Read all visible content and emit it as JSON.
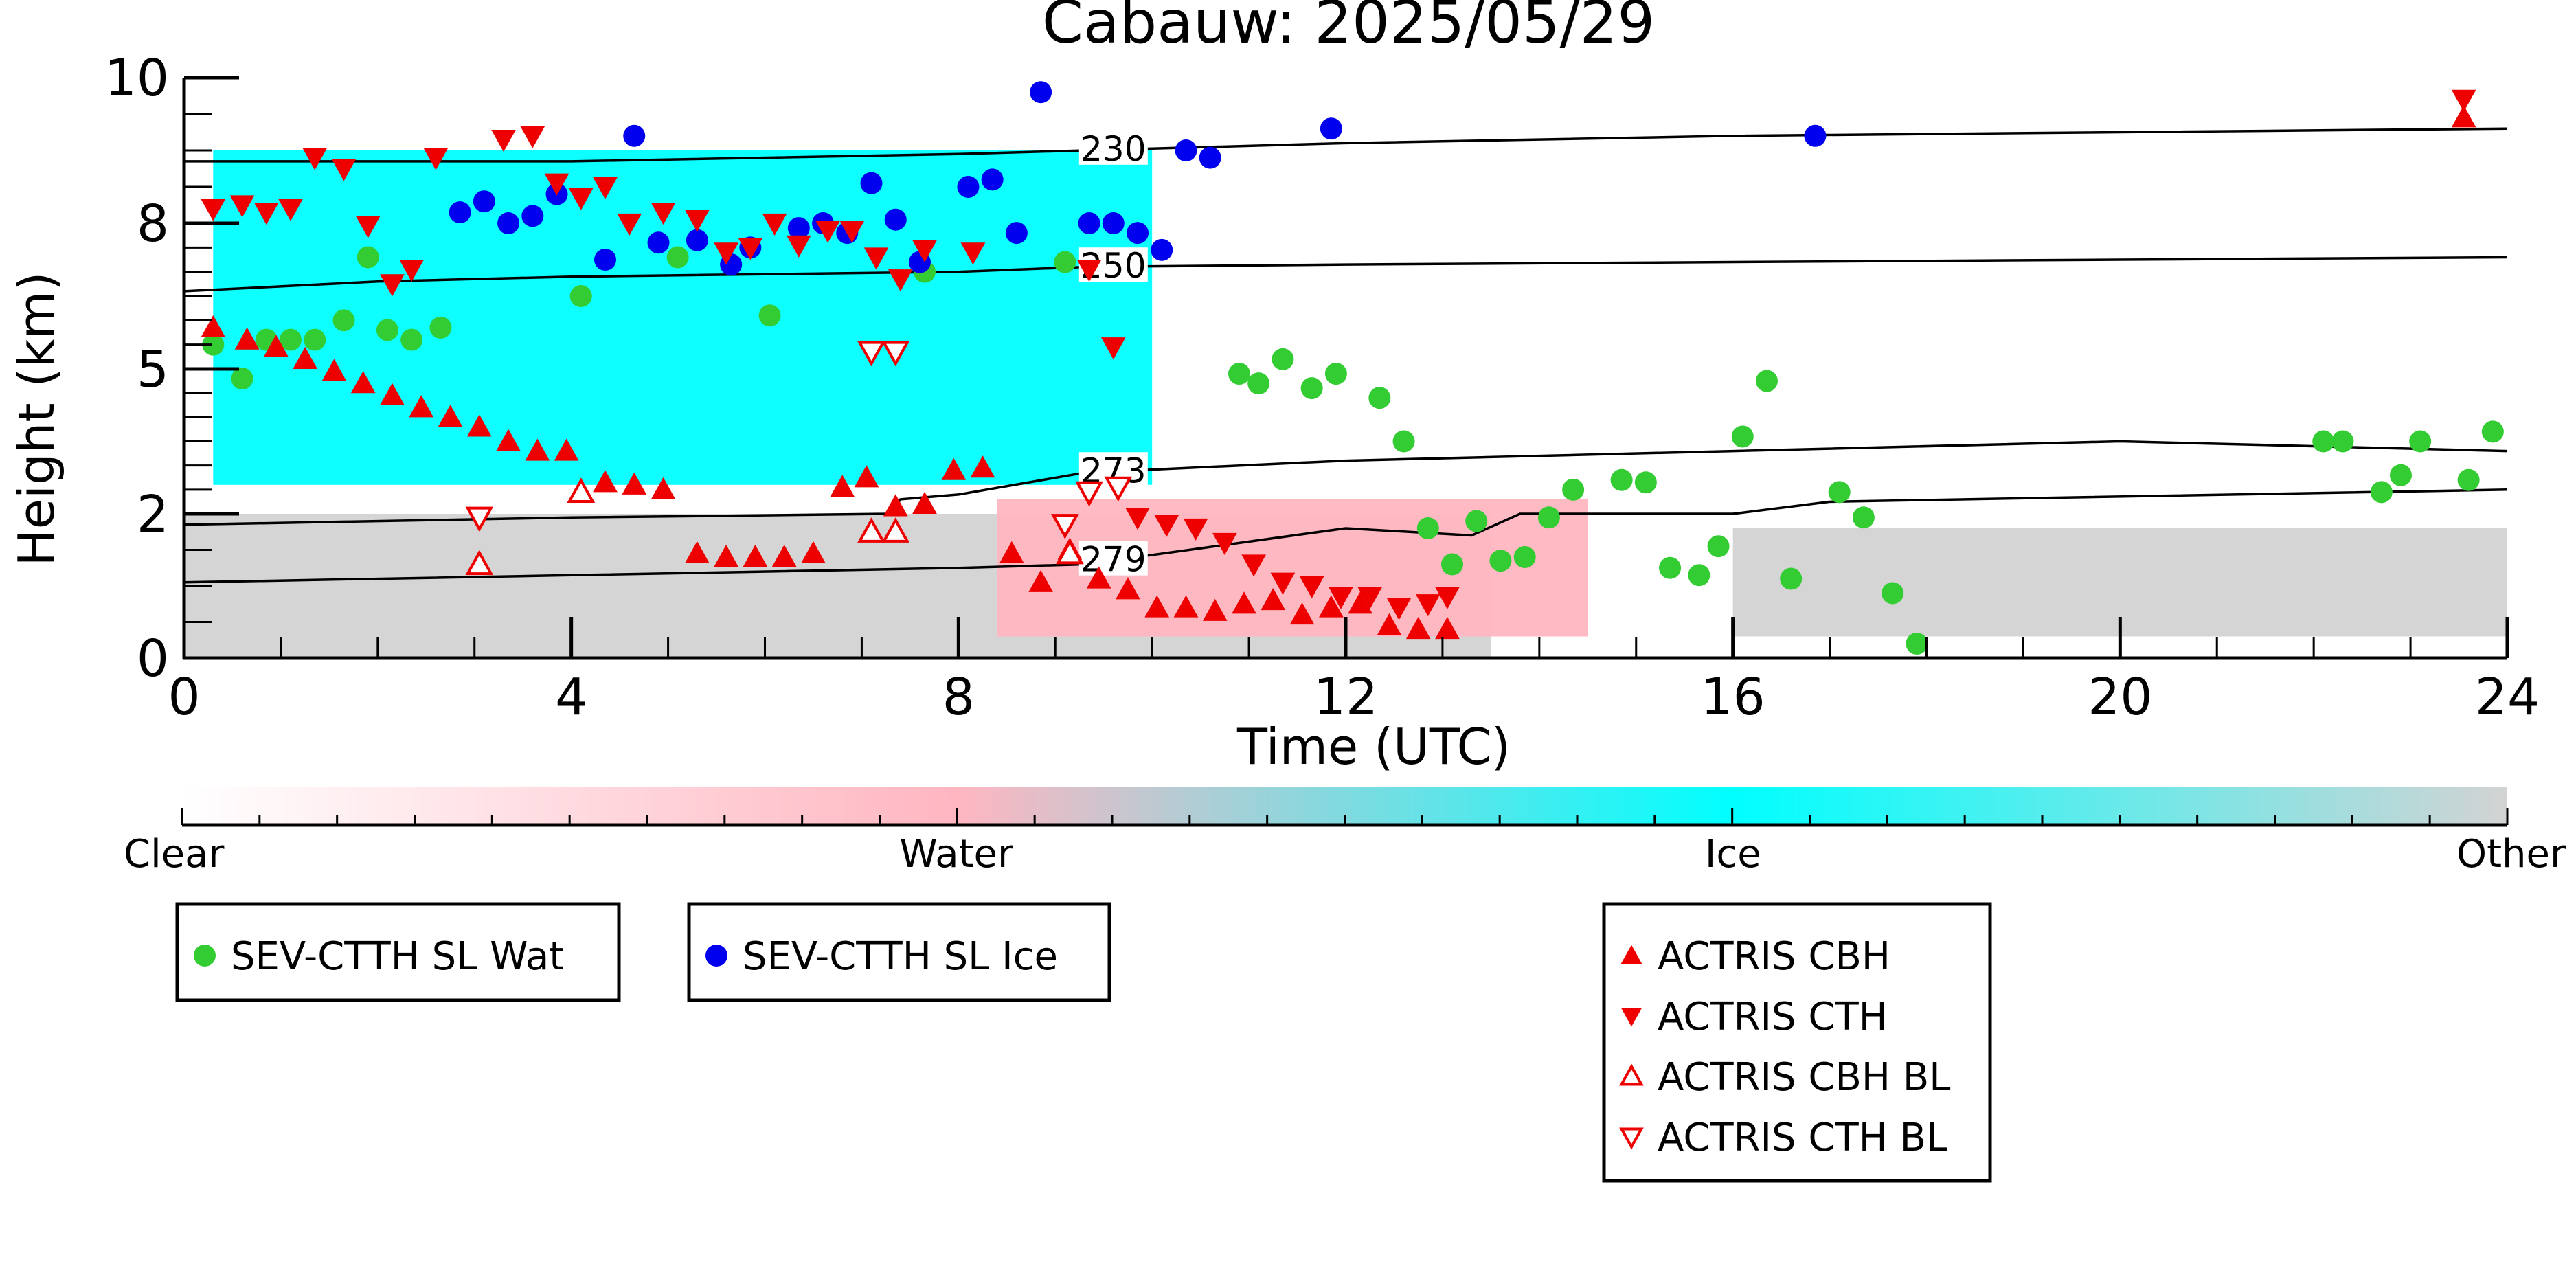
{
  "chart_data": {
    "type": "scatter",
    "title": "Cabauw: 2025/05/29",
    "xlabel": "Time (UTC)",
    "ylabel": "Height (km)",
    "xlim": [
      0,
      24
    ],
    "ylim": [
      0,
      10
    ],
    "y_axis_note": "nonlinear height axis; tick labels 0, 2, 5, 8, 10",
    "x_ticks": [
      0,
      4,
      8,
      12,
      16,
      20,
      24
    ],
    "y_ticks": [
      0,
      2,
      5,
      8,
      10
    ],
    "colorbar": {
      "labels": [
        "Clear",
        "Water",
        "Ice",
        "Other"
      ],
      "colors": [
        "#ffffff",
        "#ffb6c1",
        "#00ffff",
        "#d3d3d3"
      ]
    },
    "background_regions": [
      {
        "category": "Ice",
        "color": "#00ffff",
        "x": [
          0.3,
          10.0
        ],
        "y": [
          2.6,
          9.0
        ]
      },
      {
        "category": "Other",
        "color": "#d3d3d3",
        "x": [
          0.0,
          13.5
        ],
        "y": [
          0.0,
          2.0
        ]
      },
      {
        "category": "Other",
        "color": "#d3d3d3",
        "x": [
          16.0,
          24.0
        ],
        "y": [
          0.3,
          1.8
        ]
      },
      {
        "category": "Water",
        "color": "#ffb6c1",
        "x": [
          8.4,
          14.5
        ],
        "y": [
          0.3,
          2.3
        ]
      }
    ],
    "isotherms": [
      {
        "label": "230",
        "x": [
          0,
          4,
          8,
          9.3,
          12,
          16,
          20,
          24
        ],
        "y": [
          8.85,
          8.85,
          8.95,
          9.0,
          9.1,
          9.2,
          9.25,
          9.3
        ]
      },
      {
        "label": "250",
        "x": [
          0,
          2,
          4,
          8,
          9.3,
          12,
          16,
          20,
          24
        ],
        "y": [
          6.6,
          6.8,
          6.9,
          7.0,
          7.1,
          7.15,
          7.2,
          7.25,
          7.3
        ]
      },
      {
        "label": "273",
        "x": [
          0,
          4,
          7.3,
          7.4,
          8,
          9.3,
          12,
          16,
          20,
          24
        ],
        "y": [
          1.85,
          1.95,
          2.0,
          2.3,
          2.4,
          2.85,
          3.1,
          3.3,
          3.5,
          3.3
        ]
      },
      {
        "label": "279",
        "x": [
          0,
          4,
          8,
          9.3,
          12,
          13.3,
          13.8,
          16,
          17,
          24
        ],
        "y": [
          1.05,
          1.15,
          1.25,
          1.3,
          1.8,
          1.7,
          2.0,
          2.0,
          2.25,
          2.5
        ]
      }
    ],
    "series": [
      {
        "name": "SEV-CTTH SL Wat",
        "marker": "circle",
        "color": "#33cc33",
        "x": [
          0.3,
          0.6,
          0.85,
          1.1,
          1.35,
          1.65,
          1.9,
          2.1,
          2.35,
          2.65,
          4.1,
          5.1,
          6.05,
          7.65,
          9.1,
          10.9,
          11.1,
          11.35,
          11.65,
          11.9,
          12.35,
          12.6,
          12.85,
          13.1,
          13.35,
          13.6,
          13.85,
          14.1,
          14.35,
          14.85,
          15.1,
          15.35,
          15.65,
          15.85,
          16.1,
          16.35,
          16.6,
          17.1,
          17.35,
          17.65,
          17.9,
          22.1,
          22.3,
          22.7,
          22.9,
          23.1,
          23.6,
          23.85
        ],
        "y": [
          5.5,
          4.8,
          5.6,
          5.6,
          5.6,
          6.0,
          7.3,
          5.8,
          5.6,
          5.85,
          6.5,
          7.3,
          6.1,
          7.0,
          7.2,
          4.9,
          4.7,
          5.2,
          4.6,
          4.9,
          4.4,
          3.5,
          1.8,
          1.3,
          1.9,
          1.35,
          1.4,
          1.95,
          2.5,
          2.7,
          2.65,
          1.25,
          1.15,
          1.55,
          3.6,
          4.75,
          1.1,
          2.45,
          1.95,
          0.9,
          0.2,
          3.5,
          3.5,
          2.45,
          2.8,
          3.5,
          2.7,
          3.7
        ]
      },
      {
        "name": "SEV-CTTH SL Ice",
        "marker": "circle",
        "color": "#0000ee",
        "x": [
          2.85,
          3.1,
          3.35,
          3.6,
          3.85,
          4.35,
          4.65,
          4.9,
          5.3,
          5.65,
          5.85,
          6.35,
          6.6,
          6.85,
          7.1,
          7.35,
          7.6,
          8.1,
          8.35,
          8.6,
          8.85,
          9.35,
          9.6,
          9.85,
          10.1,
          10.35,
          10.6,
          11.85,
          16.85
        ],
        "y": [
          8.15,
          8.3,
          8.0,
          8.1,
          8.4,
          7.25,
          9.2,
          7.6,
          7.65,
          7.15,
          7.5,
          7.9,
          8.0,
          7.8,
          8.55,
          8.05,
          7.2,
          8.5,
          8.6,
          7.8,
          9.8,
          8.0,
          8.0,
          7.8,
          7.45,
          9.0,
          8.9,
          9.3,
          9.2
        ]
      },
      {
        "name": "ACTRIS CBH",
        "marker": "triangle-up",
        "color": "#ee0000",
        "x": [
          0.3,
          0.65,
          0.95,
          1.25,
          1.55,
          1.85,
          2.15,
          2.45,
          2.75,
          3.05,
          3.35,
          3.65,
          3.95,
          4.35,
          4.65,
          4.95,
          5.3,
          5.6,
          5.9,
          6.2,
          6.5,
          6.8,
          7.05,
          7.35,
          7.65,
          7.95,
          8.25,
          8.55,
          8.85,
          9.15,
          9.45,
          9.75,
          10.05,
          10.35,
          10.65,
          10.95,
          11.25,
          11.55,
          11.85,
          12.15,
          12.45,
          12.75,
          13.05,
          23.55
        ],
        "y": [
          5.85,
          5.6,
          5.45,
          5.2,
          4.95,
          4.7,
          4.45,
          4.2,
          4.0,
          3.8,
          3.5,
          3.3,
          3.3,
          2.65,
          2.6,
          2.5,
          1.45,
          1.4,
          1.4,
          1.4,
          1.45,
          2.55,
          2.75,
          2.15,
          2.2,
          2.9,
          2.95,
          1.45,
          1.05,
          1.5,
          1.1,
          0.95,
          0.7,
          0.7,
          0.65,
          0.75,
          0.8,
          0.6,
          0.7,
          0.75,
          0.45,
          0.4,
          0.4,
          9.45
        ]
      },
      {
        "name": "ACTRIS CTH",
        "marker": "triangle-down",
        "color": "#ee0000",
        "x": [
          0.3,
          0.6,
          0.85,
          1.1,
          1.35,
          1.65,
          1.9,
          2.15,
          2.35,
          2.6,
          3.3,
          3.6,
          3.85,
          4.1,
          4.35,
          4.6,
          4.95,
          5.3,
          5.6,
          5.85,
          6.1,
          6.35,
          6.65,
          6.9,
          7.15,
          7.4,
          7.65,
          8.15,
          9.35,
          9.6,
          9.85,
          10.15,
          10.45,
          10.75,
          11.05,
          11.35,
          11.65,
          11.95,
          12.25,
          12.55,
          12.85,
          13.05,
          23.55
        ],
        "y": [
          8.2,
          8.25,
          8.15,
          8.2,
          8.9,
          8.75,
          7.95,
          6.75,
          7.05,
          8.9,
          9.15,
          9.2,
          8.55,
          8.35,
          8.5,
          8.0,
          8.15,
          8.05,
          7.4,
          7.5,
          8.0,
          7.55,
          7.85,
          7.85,
          7.3,
          6.85,
          7.45,
          7.4,
          7.05,
          5.45,
          1.95,
          1.85,
          1.8,
          1.6,
          1.3,
          1.05,
          1.0,
          0.85,
          0.85,
          0.7,
          0.75,
          0.85,
          9.7
        ]
      },
      {
        "name": "ACTRIS CBH BL",
        "marker": "triangle-up-open",
        "color": "#ee0000",
        "x": [
          3.05,
          4.1,
          7.1,
          7.35,
          9.15
        ],
        "y": [
          1.3,
          2.45,
          1.75,
          1.75,
          1.45
        ]
      },
      {
        "name": "ACTRIS CTH BL",
        "marker": "triangle-down-open",
        "color": "#ee0000",
        "x": [
          3.05,
          7.1,
          7.35,
          9.1,
          9.35,
          9.65
        ],
        "y": [
          1.95,
          5.35,
          5.35,
          1.85,
          2.45,
          2.55
        ]
      }
    ]
  }
}
